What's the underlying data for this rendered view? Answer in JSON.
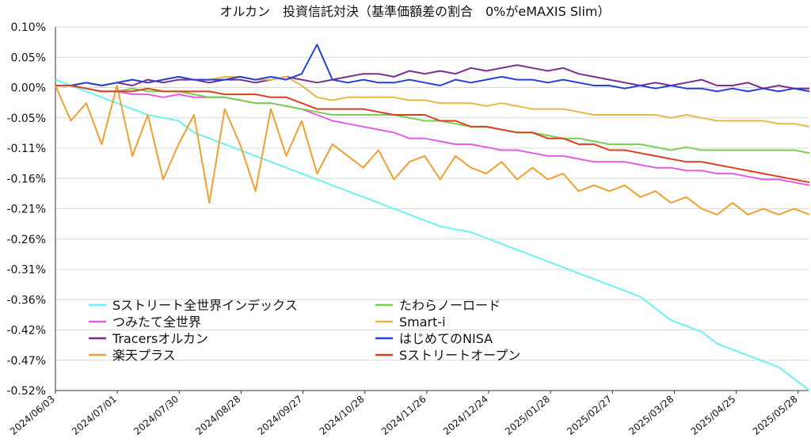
{
  "chart_data": {
    "type": "line",
    "title": "オルカン　投資信託対決（基準価額差の割合　0%がeMAXIS Slim）",
    "xlabel": "",
    "ylabel": "",
    "ylim": [
      -0.52,
      0.1
    ],
    "grid": true,
    "legend_position": "bottom-left",
    "y_ticks": [
      "0.10%",
      "0.05%",
      "0.00%",
      "-0.05%",
      "-0.11%",
      "-0.16%",
      "-0.21%",
      "-0.26%",
      "-0.31%",
      "-0.36%",
      "-0.42%",
      "-0.47%",
      "-0.52%"
    ],
    "x_ticks": [
      "2024/06/03",
      "2024/07/01",
      "2024/07/30",
      "2024/08/28",
      "2024/09/27",
      "2024/10/28",
      "2024/11/26",
      "2024/12/24",
      "2025/01/28",
      "2025/02/27",
      "2025/03/28",
      "2025/04/25",
      "2025/05/28"
    ],
    "x": [
      "2024/06/03",
      "2024/06/10",
      "2024/06/17",
      "2024/06/24",
      "2024/07/01",
      "2024/07/08",
      "2024/07/15",
      "2024/07/22",
      "2024/07/30",
      "2024/08/06",
      "2024/08/13",
      "2024/08/20",
      "2024/08/28",
      "2024/09/04",
      "2024/09/11",
      "2024/09/18",
      "2024/09/27",
      "2024/10/04",
      "2024/10/11",
      "2024/10/18",
      "2024/10/28",
      "2024/11/04",
      "2024/11/11",
      "2024/11/18",
      "2024/11/26",
      "2024/12/03",
      "2024/12/10",
      "2024/12/17",
      "2024/12/24",
      "2025/01/06",
      "2025/01/13",
      "2025/01/20",
      "2025/01/28",
      "2025/02/04",
      "2025/02/11",
      "2025/02/18",
      "2025/02/27",
      "2025/03/05",
      "2025/03/12",
      "2025/03/19",
      "2025/03/28",
      "2025/04/04",
      "2025/04/11",
      "2025/04/18",
      "2025/04/25",
      "2025/05/02",
      "2025/05/09",
      "2025/05/16",
      "2025/05/28",
      "2025/06/05"
    ],
    "series": [
      {
        "name": "Sストリート全世界インデックス",
        "color": "#6cf2f0",
        "values": [
          0.01,
          0.0,
          -0.01,
          -0.02,
          -0.03,
          -0.04,
          -0.05,
          -0.055,
          -0.06,
          -0.08,
          -0.09,
          -0.1,
          -0.11,
          -0.12,
          -0.13,
          -0.14,
          -0.15,
          -0.16,
          -0.17,
          -0.18,
          -0.19,
          -0.2,
          -0.21,
          -0.22,
          -0.23,
          -0.24,
          -0.245,
          -0.25,
          -0.26,
          -0.27,
          -0.28,
          -0.29,
          -0.3,
          -0.31,
          -0.32,
          -0.33,
          -0.34,
          -0.35,
          -0.36,
          -0.38,
          -0.4,
          -0.41,
          -0.42,
          -0.44,
          -0.45,
          -0.46,
          -0.47,
          -0.48,
          -0.5,
          -0.52
        ]
      },
      {
        "name": "つみたて全世界",
        "color": "#e45be6",
        "values": [
          0.0,
          0.0,
          -0.005,
          -0.01,
          -0.01,
          -0.015,
          -0.015,
          -0.02,
          -0.015,
          -0.02,
          -0.02,
          -0.02,
          -0.025,
          -0.03,
          -0.03,
          -0.035,
          -0.04,
          -0.05,
          -0.06,
          -0.065,
          -0.07,
          -0.075,
          -0.08,
          -0.09,
          -0.09,
          -0.095,
          -0.1,
          -0.1,
          -0.105,
          -0.11,
          -0.11,
          -0.115,
          -0.12,
          -0.12,
          -0.125,
          -0.13,
          -0.13,
          -0.13,
          -0.135,
          -0.14,
          -0.14,
          -0.145,
          -0.145,
          -0.15,
          -0.15,
          -0.155,
          -0.16,
          -0.16,
          -0.165,
          -0.17
        ]
      },
      {
        "name": "Tracersオルカン",
        "color": "#7a2d8c",
        "values": [
          0.0,
          0.0,
          0.005,
          0.0,
          0.005,
          0.0,
          0.01,
          0.005,
          0.01,
          0.01,
          0.005,
          0.01,
          0.01,
          0.005,
          0.01,
          0.015,
          0.01,
          0.005,
          0.01,
          0.015,
          0.02,
          0.02,
          0.015,
          0.025,
          0.02,
          0.025,
          0.02,
          0.03,
          0.025,
          0.03,
          0.035,
          0.03,
          0.025,
          0.03,
          0.02,
          0.015,
          0.01,
          0.005,
          0.0,
          0.005,
          0.0,
          0.005,
          0.01,
          0.0,
          0.0,
          0.005,
          -0.005,
          0.0,
          -0.005,
          -0.005
        ]
      },
      {
        "name": "楽天プラス",
        "color": "#f0a030",
        "values": [
          0.0,
          -0.06,
          -0.03,
          -0.1,
          0.0,
          -0.12,
          -0.05,
          -0.16,
          -0.1,
          -0.05,
          -0.2,
          -0.04,
          -0.1,
          -0.18,
          -0.04,
          -0.12,
          -0.06,
          -0.15,
          -0.1,
          -0.12,
          -0.14,
          -0.11,
          -0.16,
          -0.13,
          -0.12,
          -0.16,
          -0.12,
          -0.14,
          -0.15,
          -0.13,
          -0.16,
          -0.14,
          -0.16,
          -0.15,
          -0.18,
          -0.17,
          -0.18,
          -0.17,
          -0.19,
          -0.18,
          -0.2,
          -0.19,
          -0.21,
          -0.22,
          -0.2,
          -0.22,
          -0.21,
          -0.22,
          -0.21,
          -0.22
        ]
      },
      {
        "name": "たわらノーロード",
        "color": "#79cf4e",
        "values": [
          0.0,
          0.0,
          -0.005,
          -0.01,
          -0.01,
          -0.005,
          -0.01,
          -0.01,
          -0.01,
          -0.015,
          -0.02,
          -0.02,
          -0.025,
          -0.03,
          -0.03,
          -0.035,
          -0.04,
          -0.045,
          -0.05,
          -0.05,
          -0.05,
          -0.05,
          -0.05,
          -0.055,
          -0.06,
          -0.06,
          -0.065,
          -0.07,
          -0.07,
          -0.075,
          -0.08,
          -0.08,
          -0.085,
          -0.09,
          -0.09,
          -0.095,
          -0.1,
          -0.1,
          -0.1,
          -0.105,
          -0.11,
          -0.105,
          -0.11,
          -0.11,
          -0.11,
          -0.11,
          -0.11,
          -0.11,
          -0.11,
          -0.115
        ]
      },
      {
        "name": "Smart-i",
        "color": "#e5b84a",
        "values": [
          0.0,
          0.0,
          0.005,
          0.0,
          0.005,
          0.01,
          0.005,
          0.01,
          0.015,
          0.01,
          0.01,
          0.015,
          0.015,
          0.01,
          0.01,
          0.015,
          0.0,
          -0.02,
          -0.025,
          -0.02,
          -0.02,
          -0.02,
          -0.02,
          -0.025,
          -0.025,
          -0.03,
          -0.03,
          -0.03,
          -0.035,
          -0.03,
          -0.035,
          -0.04,
          -0.04,
          -0.04,
          -0.045,
          -0.05,
          -0.05,
          -0.05,
          -0.05,
          -0.05,
          -0.055,
          -0.05,
          -0.055,
          -0.06,
          -0.06,
          -0.06,
          -0.06,
          -0.065,
          -0.065,
          -0.07
        ]
      },
      {
        "name": "はじめてのNISA",
        "color": "#2640d8",
        "values": [
          0.0,
          0.0,
          0.005,
          0.0,
          0.005,
          0.01,
          0.005,
          0.01,
          0.015,
          0.01,
          0.01,
          0.01,
          0.015,
          0.01,
          0.015,
          0.01,
          0.02,
          0.07,
          0.01,
          0.005,
          0.01,
          0.005,
          0.005,
          0.01,
          0.005,
          0.0,
          0.01,
          0.005,
          0.01,
          0.015,
          0.01,
          0.01,
          0.005,
          0.01,
          0.005,
          0.0,
          0.0,
          -0.005,
          0.0,
          -0.005,
          0.0,
          -0.005,
          -0.005,
          -0.01,
          -0.005,
          -0.01,
          -0.005,
          -0.01,
          -0.005,
          -0.01
        ]
      },
      {
        "name": "Sストリートオープン",
        "color": "#d84022",
        "values": [
          0.0,
          0.0,
          -0.005,
          -0.01,
          -0.01,
          -0.01,
          -0.005,
          -0.01,
          -0.01,
          -0.01,
          -0.01,
          -0.015,
          -0.015,
          -0.015,
          -0.02,
          -0.02,
          -0.03,
          -0.04,
          -0.04,
          -0.04,
          -0.04,
          -0.045,
          -0.05,
          -0.05,
          -0.05,
          -0.06,
          -0.06,
          -0.07,
          -0.07,
          -0.075,
          -0.08,
          -0.08,
          -0.09,
          -0.09,
          -0.1,
          -0.1,
          -0.11,
          -0.11,
          -0.115,
          -0.12,
          -0.125,
          -0.13,
          -0.13,
          -0.135,
          -0.14,
          -0.145,
          -0.15,
          -0.155,
          -0.16,
          -0.165
        ]
      }
    ]
  }
}
